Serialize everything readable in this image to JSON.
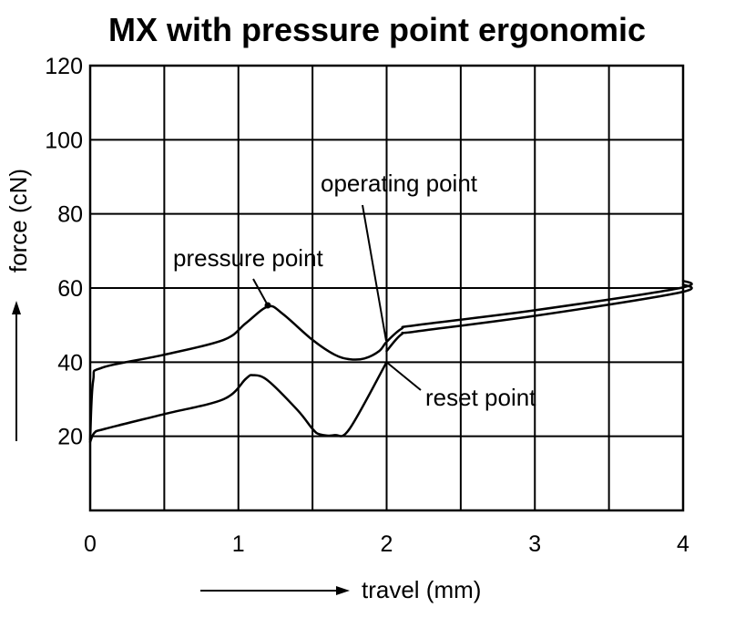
{
  "chart_data": {
    "type": "line",
    "title": "MX with pressure point ergonomic",
    "xlabel": "travel (mm)",
    "ylabel": "force (cN)",
    "xlim": [
      0,
      4
    ],
    "ylim": [
      0,
      120
    ],
    "x_ticks": [
      "0",
      "1",
      "2",
      "3",
      "4"
    ],
    "y_ticks": [
      "20",
      "40",
      "60",
      "80",
      "100",
      "120"
    ],
    "grid": true,
    "series": [
      {
        "points": [
          [
            0,
            19
          ],
          [
            0.02,
            35
          ],
          [
            0.08,
            38.5
          ],
          [
            0.5,
            42
          ],
          [
            0.9,
            46
          ],
          [
            1.05,
            50.5
          ],
          [
            1.2,
            55
          ],
          [
            1.3,
            53
          ],
          [
            1.5,
            46
          ],
          [
            1.65,
            42
          ],
          [
            1.75,
            40.8
          ],
          [
            1.85,
            41
          ],
          [
            1.95,
            43
          ],
          [
            2.0,
            45.5
          ],
          [
            2.1,
            49
          ],
          [
            2.2,
            50
          ],
          [
            3.0,
            54
          ],
          [
            3.98,
            60
          ],
          [
            4.0,
            62
          ]
        ]
      },
      {
        "points": [
          [
            2.0,
            43
          ],
          [
            2.1,
            47.5
          ],
          [
            2.2,
            48.3
          ],
          [
            3.0,
            52.5
          ],
          [
            3.98,
            58.8
          ],
          [
            4.0,
            61
          ]
        ]
      },
      {
        "points": [
          [
            0,
            18.5
          ],
          [
            0.03,
            21
          ],
          [
            0.1,
            22
          ],
          [
            0.5,
            26
          ],
          [
            0.9,
            30
          ],
          [
            1.05,
            35.5
          ],
          [
            1.1,
            36.5
          ],
          [
            1.2,
            35
          ],
          [
            1.4,
            27
          ],
          [
            1.5,
            22
          ],
          [
            1.55,
            20.5
          ],
          [
            1.65,
            20.3
          ],
          [
            1.75,
            22
          ],
          [
            2.0,
            40
          ]
        ]
      }
    ],
    "points_marked": [
      {
        "label": "pressure point",
        "x": 1.2,
        "y": 55
      },
      {
        "label": "operating point",
        "x": 2.0,
        "y": 45.5
      },
      {
        "label": "reset point",
        "x": 2.0,
        "y": 40
      }
    ]
  }
}
